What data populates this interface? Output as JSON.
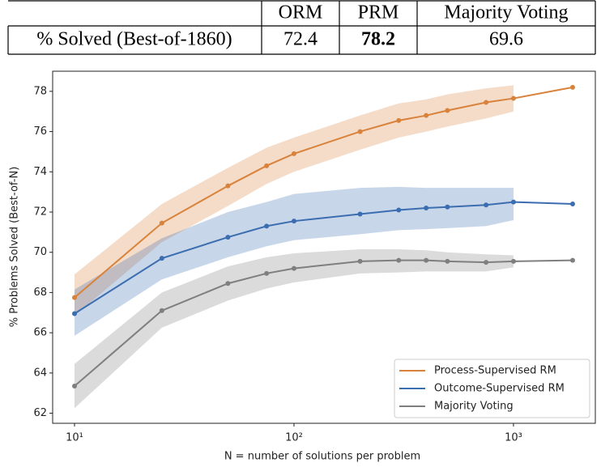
{
  "table": {
    "header": [
      "ORM",
      "PRM",
      "Majority Voting"
    ],
    "row_label": "% Solved (Best-of-1860)",
    "row": [
      72.4,
      78.2,
      69.6
    ],
    "bold": [
      false,
      true,
      false
    ]
  },
  "chart_data": {
    "type": "line",
    "x_label": "N = number of solutions per problem",
    "y_label": "% Problems Solved (Best-of-N)",
    "x": [
      10,
      25,
      50,
      75,
      100,
      200,
      300,
      400,
      500,
      750,
      1000,
      1860
    ],
    "xlim": [
      7.95,
      2360
    ],
    "xscale": "log",
    "xticks": [
      {
        "value": 10,
        "label": "10¹"
      },
      {
        "value": 100,
        "label": "10²"
      },
      {
        "value": 1000,
        "label": "10³"
      }
    ],
    "ylim": [
      61.5,
      79
    ],
    "yticks": [
      62,
      64,
      66,
      68,
      70,
      72,
      74,
      76,
      78
    ],
    "legend": "lower right",
    "series": [
      {
        "name": "Process-Supervised RM",
        "color": "#d8823b",
        "values": [
          67.75,
          71.45,
          73.3,
          74.3,
          74.9,
          76.0,
          76.55,
          76.8,
          77.05,
          77.45,
          77.65,
          78.2
        ],
        "upper": [
          68.9,
          72.4,
          74.2,
          75.2,
          75.7,
          76.8,
          77.4,
          77.6,
          77.85,
          78.15,
          78.3,
          null
        ],
        "lower": [
          66.85,
          70.5,
          72.3,
          73.4,
          74.0,
          75.1,
          75.7,
          76.0,
          76.25,
          76.65,
          77.0,
          null
        ]
      },
      {
        "name": "Outcome-Supervised RM",
        "color": "#3b6db1",
        "values": [
          66.95,
          69.7,
          70.75,
          71.3,
          71.55,
          71.9,
          72.1,
          72.2,
          72.25,
          72.35,
          72.5,
          72.4
        ],
        "upper": [
          68.15,
          70.7,
          72.0,
          72.5,
          72.9,
          73.2,
          73.25,
          73.2,
          73.2,
          73.2,
          73.2,
          null
        ],
        "lower": [
          65.85,
          68.65,
          69.75,
          70.3,
          70.6,
          70.9,
          71.1,
          71.15,
          71.2,
          71.3,
          71.6,
          null
        ]
      },
      {
        "name": "Majority Voting",
        "color": "#7f7f7f",
        "values": [
          63.35,
          67.1,
          68.45,
          68.95,
          69.2,
          69.55,
          69.6,
          69.6,
          69.55,
          69.5,
          69.55,
          69.6
        ],
        "upper": [
          64.45,
          68.0,
          69.3,
          69.75,
          69.95,
          70.15,
          70.15,
          70.1,
          70.0,
          69.9,
          69.85,
          null
        ],
        "lower": [
          62.25,
          66.25,
          67.6,
          68.2,
          68.5,
          68.95,
          69.0,
          69.05,
          69.05,
          69.05,
          69.25,
          null
        ]
      }
    ]
  }
}
